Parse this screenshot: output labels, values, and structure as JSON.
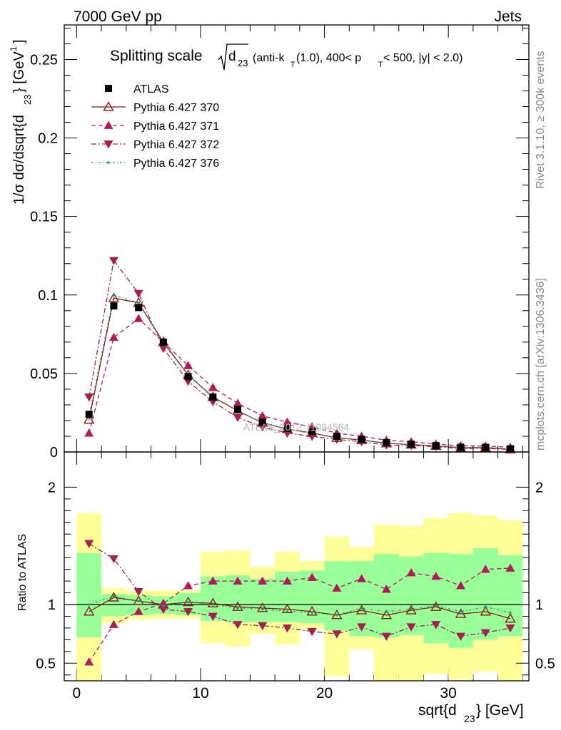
{
  "header": {
    "energy": "7000 GeV pp",
    "category": "Jets"
  },
  "side_labels": {
    "rivet": "Rivet 3.1.10, ≥ 300k events",
    "source": "mcplots.cern.ch [arXiv:1306.3436]"
  },
  "watermark": "ATLAS_2012_I1094564",
  "chart_data": {
    "type": "line",
    "title": "Splitting scale √d23 (anti-kT(1.0), 400< pT < 500, |y| < 2.0)",
    "title_parts": {
      "main": "Splitting scale",
      "d": "d",
      "d_sub": "23",
      "pre": "(anti-k",
      "kt_sub": "T",
      "mid": "(1.0), 400< p",
      "pt_sub": "T",
      "post": " < 500, |y| < 2.0)"
    },
    "xlabel": "sqrt{d23} [GeV]",
    "xlabel_parts": {
      "main": "sqrt{d",
      "sub": "23",
      "post": "} [GeV]"
    },
    "ylabel": "1/σ dσ/dsqrt{d23} [GeV^-1]",
    "ylabel_parts": {
      "main": "1/σ dσ/dsqrt{d",
      "sub": "23",
      "mid": "} [GeV",
      "sup": "-1",
      "post": "]"
    },
    "ratio_ylabel": "Ratio to ATLAS",
    "xlim": [
      -1,
      36.5
    ],
    "ylim": [
      0,
      0.272
    ],
    "ratio_ylim": [
      0.35,
      2.3
    ],
    "x_ticks": [
      0,
      10,
      20,
      30
    ],
    "y_ticks": [
      0,
      0.05,
      0.1,
      0.15,
      0.2,
      0.25
    ],
    "y_tick_labels": [
      "0",
      "0.05",
      "0.1",
      "0.15",
      "0.2",
      "0.25"
    ],
    "ratio_ticks": [
      0.5,
      1,
      2
    ],
    "ratio_tick_labels": [
      "0.5",
      "1",
      "2"
    ],
    "grid": false,
    "legend_position": "top-left",
    "bin_edges": [
      0,
      2,
      4,
      6,
      8,
      10,
      12,
      14,
      16,
      18,
      20,
      22,
      24,
      26,
      28,
      30,
      32,
      34,
      36
    ],
    "x": [
      1,
      3,
      5,
      7,
      9,
      11,
      13,
      15,
      17,
      19,
      21,
      23,
      25,
      27,
      29,
      31,
      33,
      35
    ],
    "data": {
      "name": "ATLAS",
      "values": [
        0.024,
        0.093,
        0.092,
        0.07,
        0.048,
        0.035,
        0.027,
        0.019,
        0.015,
        0.013,
        0.01,
        0.008,
        0.006,
        0.005,
        0.004,
        0.003,
        0.003,
        0.002
      ]
    },
    "band_inner": [
      [
        0.72,
        1.44
      ],
      [
        0.9,
        1.09
      ],
      [
        0.91,
        1.08
      ],
      [
        0.92,
        1.07
      ],
      [
        0.91,
        1.1
      ],
      [
        0.86,
        1.24
      ],
      [
        0.85,
        1.25
      ],
      [
        0.85,
        1.22
      ],
      [
        0.85,
        1.28
      ],
      [
        0.84,
        1.29
      ],
      [
        0.78,
        1.37
      ],
      [
        0.73,
        1.37
      ],
      [
        0.72,
        1.43
      ],
      [
        0.74,
        1.41
      ],
      [
        0.67,
        1.44
      ],
      [
        0.63,
        1.43
      ],
      [
        0.7,
        1.48
      ],
      [
        0.73,
        1.42
      ]
    ],
    "band_outer": [
      [
        0.05,
        1.78
      ],
      [
        0.84,
        1.14
      ],
      [
        0.87,
        1.12
      ],
      [
        0.88,
        1.12
      ],
      [
        0.88,
        1.12
      ],
      [
        0.67,
        1.45
      ],
      [
        0.64,
        1.46
      ],
      [
        0.75,
        1.32
      ],
      [
        0.66,
        1.45
      ],
      [
        0.79,
        1.37
      ],
      [
        0.39,
        1.58
      ],
      [
        0.62,
        1.49
      ],
      [
        0.05,
        1.68
      ],
      [
        0.05,
        1.67
      ],
      [
        0.41,
        1.74
      ],
      [
        0.36,
        1.78
      ],
      [
        0.43,
        1.76
      ],
      [
        0.2,
        1.72
      ]
    ],
    "series": [
      {
        "name": "Pythia 6.427 370",
        "color": "#8b1a1a",
        "dash": "",
        "marker": "triangle-open",
        "values": [
          0.0205,
          0.098,
          0.095,
          0.07,
          0.049,
          0.035,
          0.0262,
          0.0186,
          0.0146,
          0.0121,
          0.009,
          0.0076,
          0.0055,
          0.0047,
          0.0039,
          0.0027,
          0.0028,
          0.0017
        ],
        "ratio": [
          0.94,
          1.06,
          1.03,
          1.0,
          1.02,
          1.01,
          0.98,
          0.97,
          0.96,
          0.94,
          0.91,
          0.95,
          0.91,
          0.95,
          0.98,
          0.92,
          0.94,
          0.88
        ]
      },
      {
        "name": "Pythia 6.427 371",
        "color": "#b01c5a",
        "dash": "6,4",
        "marker": "triangle-up",
        "values": [
          0.012,
          0.073,
          0.085,
          0.07,
          0.055,
          0.041,
          0.031,
          0.023,
          0.019,
          0.016,
          0.012,
          0.01,
          0.0075,
          0.0065,
          0.005,
          0.004,
          0.0038,
          0.003
        ],
        "ratio": [
          0.51,
          0.83,
          0.94,
          1.01,
          1.16,
          1.2,
          1.2,
          1.2,
          1.2,
          1.23,
          1.14,
          1.22,
          1.13,
          1.27,
          1.24,
          1.16,
          1.3,
          1.31
        ]
      },
      {
        "name": "Pythia 6.427 372",
        "color": "#a3204f",
        "dash": "7,3,2,3",
        "marker": "triangle-down",
        "values": [
          0.035,
          0.122,
          0.101,
          0.066,
          0.045,
          0.032,
          0.022,
          0.016,
          0.012,
          0.01,
          0.008,
          0.0065,
          0.0044,
          0.0041,
          0.0034,
          0.0022,
          0.0023,
          0.0016
        ],
        "ratio": [
          1.52,
          1.39,
          1.11,
          0.96,
          0.94,
          0.9,
          0.83,
          0.82,
          0.8,
          0.77,
          0.75,
          0.81,
          0.73,
          0.81,
          0.83,
          0.73,
          0.76,
          0.8
        ]
      },
      {
        "name": "Pythia 6.427 376",
        "color": "#1f9a72",
        "dash": "3,3,1,3",
        "marker": "dot",
        "values": [
          0.023,
          0.1,
          0.095,
          0.069,
          0.049,
          0.035,
          0.0265,
          0.0185,
          0.0145,
          0.012,
          0.0091,
          0.0077,
          0.0056,
          0.0047,
          0.0039,
          0.0028,
          0.003,
          0.0019
        ],
        "ratio": [
          1.0,
          1.07,
          1.03,
          0.99,
          1.02,
          1.0,
          0.97,
          0.96,
          0.94,
          0.93,
          0.91,
          0.97,
          0.94,
          0.96,
          0.99,
          0.94,
          0.98,
          0.93
        ]
      }
    ]
  },
  "colors": {
    "band_inner": "#99ff99",
    "band_outer": "#ffff99",
    "axis": "#000000",
    "reference_line": "#000000"
  }
}
